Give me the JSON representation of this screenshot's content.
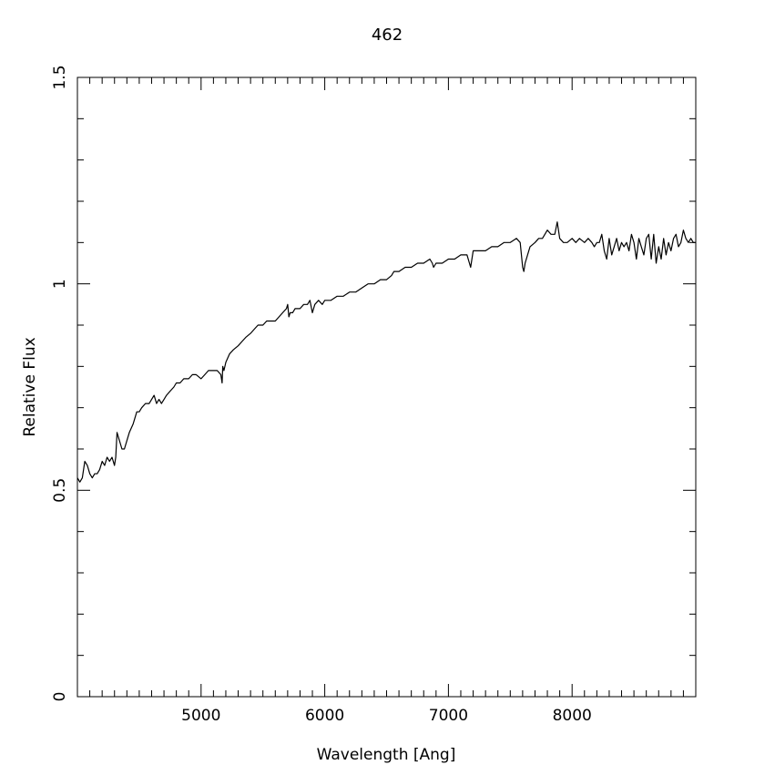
{
  "chart_data": {
    "type": "line",
    "title": "462",
    "xlabel": "Wavelength [Ang]",
    "ylabel": "Relative Flux",
    "xlim": [
      4000,
      9000
    ],
    "ylim": [
      0,
      1.5
    ],
    "x_ticks": [
      {
        "value": 5000,
        "label": "5000"
      },
      {
        "value": 6000,
        "label": "6000"
      },
      {
        "value": 7000,
        "label": "7000"
      },
      {
        "value": 8000,
        "label": "8000"
      }
    ],
    "y_ticks": [
      {
        "value": 0,
        "label": "0"
      },
      {
        "value": 0.5,
        "label": "0.5"
      },
      {
        "value": 1,
        "label": "1"
      },
      {
        "value": 1.5,
        "label": "1.5"
      }
    ],
    "x_minor_step": 100,
    "x_major_step": 1000,
    "y_minor_step": 0.1,
    "grid": false,
    "line_color": "#000000",
    "series": [
      {
        "x": [
          4000,
          4020,
          4040,
          4060,
          4080,
          4100,
          4120,
          4140,
          4160,
          4180,
          4200,
          4220,
          4240,
          4260,
          4280,
          4300,
          4310,
          4320,
          4340,
          4360,
          4380,
          4400,
          4420,
          4450,
          4480,
          4500,
          4520,
          4550,
          4580,
          4600,
          4620,
          4640,
          4660,
          4680,
          4700,
          4720,
          4750,
          4780,
          4800,
          4830,
          4860,
          4900,
          4930,
          4960,
          5000,
          5030,
          5060,
          5100,
          5130,
          5160,
          5170,
          5175,
          5185,
          5200,
          5230,
          5260,
          5300,
          5330,
          5360,
          5400,
          5430,
          5460,
          5500,
          5530,
          5560,
          5600,
          5630,
          5660,
          5690,
          5700,
          5710,
          5720,
          5740,
          5760,
          5800,
          5830,
          5860,
          5880,
          5893,
          5900,
          5920,
          5950,
          5980,
          6000,
          6050,
          6100,
          6150,
          6200,
          6250,
          6300,
          6350,
          6400,
          6450,
          6500,
          6540,
          6560,
          6600,
          6650,
          6700,
          6750,
          6800,
          6850,
          6870,
          6880,
          6900,
          6950,
          7000,
          7050,
          7100,
          7150,
          7180,
          7200,
          7250,
          7300,
          7350,
          7400,
          7450,
          7500,
          7550,
          7580,
          7600,
          7610,
          7620,
          7640,
          7660,
          7700,
          7730,
          7760,
          7780,
          7800,
          7830,
          7860,
          7880,
          7900,
          7930,
          7960,
          8000,
          8030,
          8060,
          8100,
          8130,
          8160,
          8180,
          8200,
          8220,
          8240,
          8260,
          8280,
          8300,
          8320,
          8340,
          8360,
          8380,
          8400,
          8420,
          8440,
          8460,
          8480,
          8500,
          8520,
          8540,
          8560,
          8580,
          8600,
          8620,
          8640,
          8660,
          8680,
          8700,
          8720,
          8740,
          8760,
          8780,
          8800,
          8820,
          8840,
          8860,
          8880,
          8900,
          8920,
          8940,
          8960,
          8980,
          9000
        ],
        "y": [
          0.53,
          0.52,
          0.53,
          0.57,
          0.56,
          0.54,
          0.53,
          0.54,
          0.54,
          0.55,
          0.57,
          0.56,
          0.58,
          0.57,
          0.58,
          0.56,
          0.58,
          0.64,
          0.62,
          0.6,
          0.6,
          0.62,
          0.64,
          0.66,
          0.69,
          0.69,
          0.7,
          0.71,
          0.71,
          0.72,
          0.73,
          0.71,
          0.72,
          0.71,
          0.72,
          0.73,
          0.74,
          0.75,
          0.76,
          0.76,
          0.77,
          0.77,
          0.78,
          0.78,
          0.77,
          0.78,
          0.79,
          0.79,
          0.79,
          0.78,
          0.76,
          0.8,
          0.79,
          0.81,
          0.83,
          0.84,
          0.85,
          0.86,
          0.87,
          0.88,
          0.89,
          0.9,
          0.9,
          0.91,
          0.91,
          0.91,
          0.92,
          0.93,
          0.94,
          0.95,
          0.92,
          0.93,
          0.93,
          0.94,
          0.94,
          0.95,
          0.95,
          0.96,
          0.94,
          0.93,
          0.95,
          0.96,
          0.95,
          0.96,
          0.96,
          0.97,
          0.97,
          0.98,
          0.98,
          0.99,
          1.0,
          1.0,
          1.01,
          1.01,
          1.02,
          1.03,
          1.03,
          1.04,
          1.04,
          1.05,
          1.05,
          1.06,
          1.05,
          1.04,
          1.05,
          1.05,
          1.06,
          1.06,
          1.07,
          1.07,
          1.04,
          1.08,
          1.08,
          1.08,
          1.09,
          1.09,
          1.1,
          1.1,
          1.11,
          1.1,
          1.04,
          1.03,
          1.05,
          1.07,
          1.09,
          1.1,
          1.11,
          1.11,
          1.12,
          1.13,
          1.12,
          1.12,
          1.15,
          1.11,
          1.1,
          1.1,
          1.11,
          1.1,
          1.11,
          1.1,
          1.11,
          1.1,
          1.09,
          1.1,
          1.1,
          1.12,
          1.08,
          1.06,
          1.11,
          1.07,
          1.09,
          1.11,
          1.08,
          1.1,
          1.09,
          1.1,
          1.08,
          1.12,
          1.1,
          1.06,
          1.11,
          1.09,
          1.07,
          1.11,
          1.12,
          1.06,
          1.12,
          1.05,
          1.09,
          1.06,
          1.11,
          1.07,
          1.1,
          1.08,
          1.11,
          1.12,
          1.09,
          1.1,
          1.13,
          1.11,
          1.1,
          1.11,
          1.1,
          1.1
        ]
      }
    ]
  }
}
